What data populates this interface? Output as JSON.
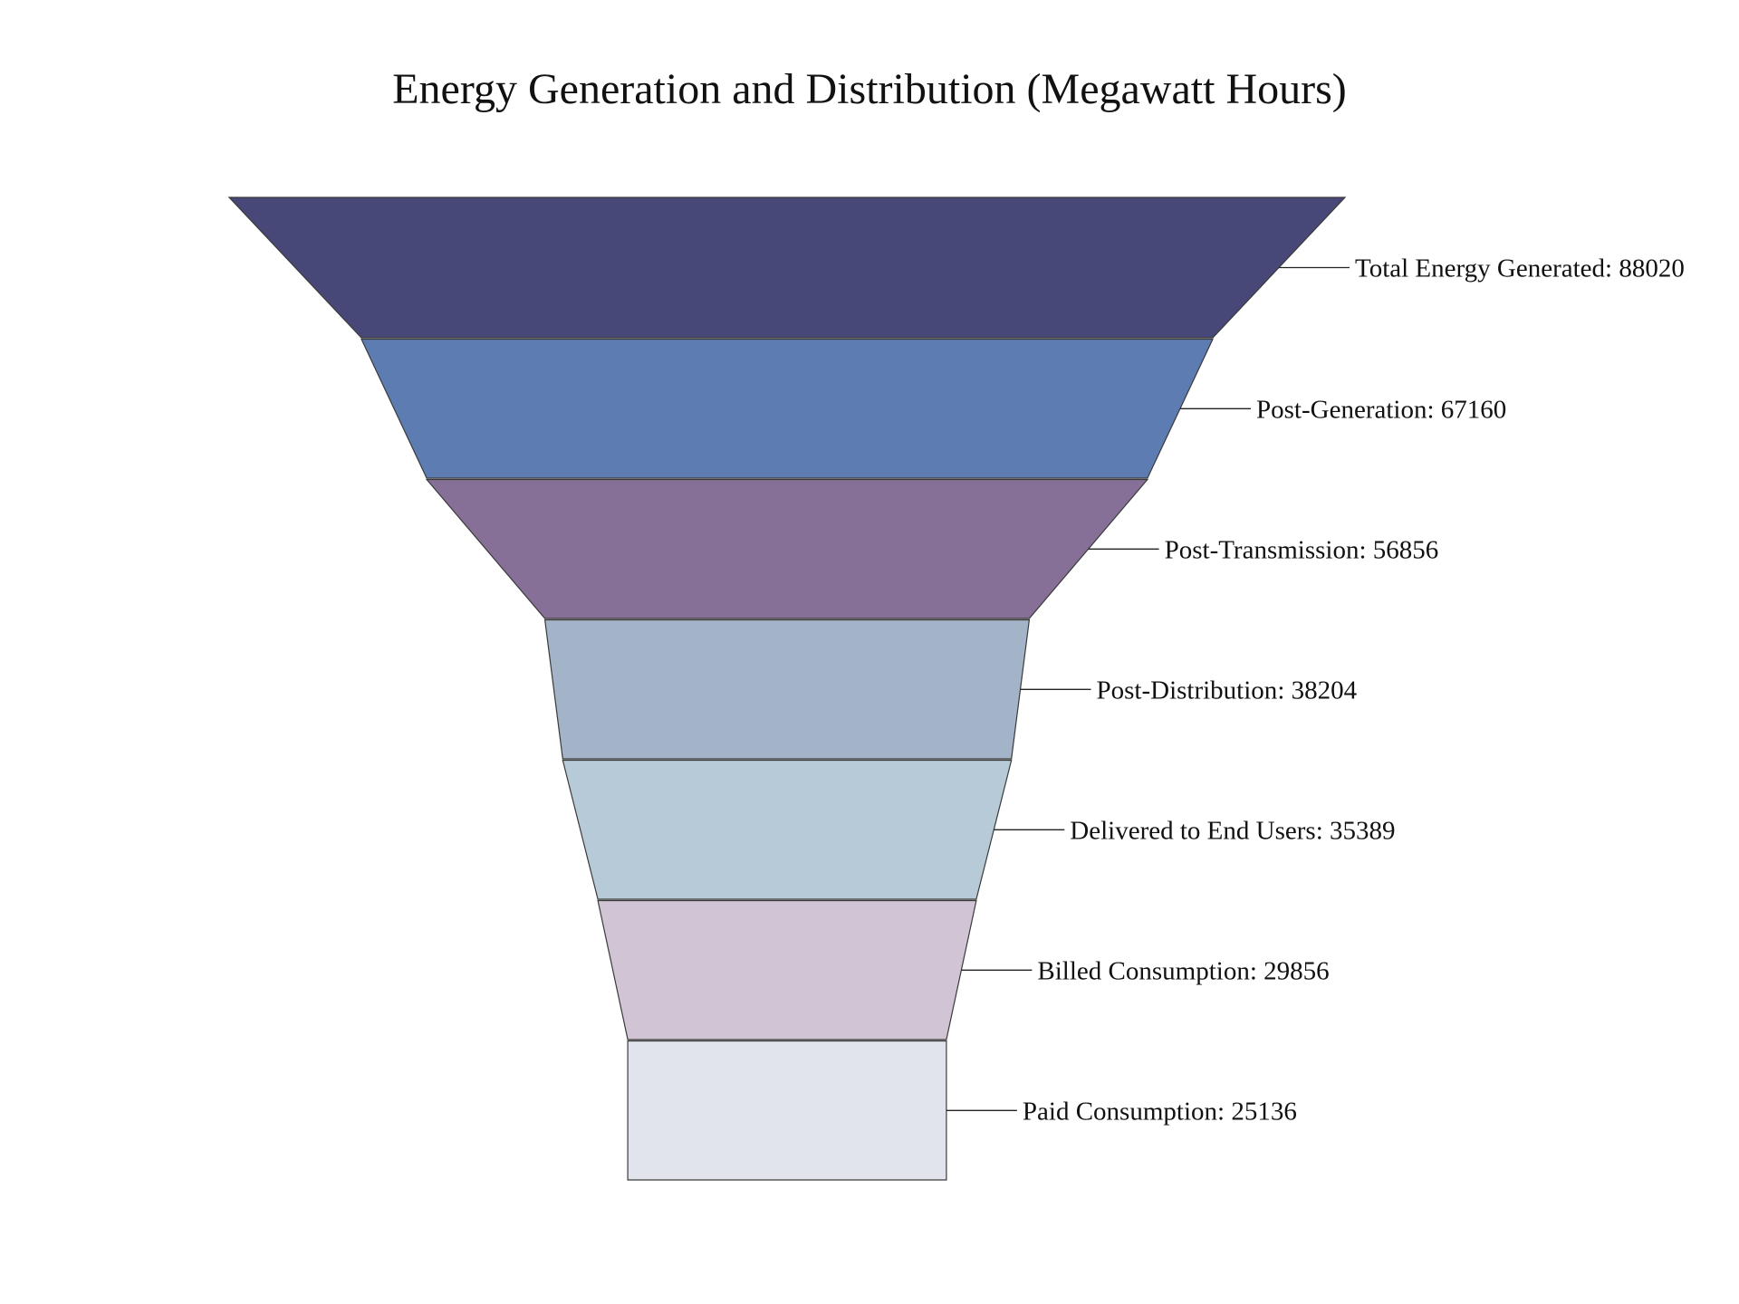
{
  "chart_data": {
    "type": "funnel",
    "title": "Energy Generation and Distribution (Megawatt Hours)",
    "label_separator": ": ",
    "stages": [
      {
        "label": "Total Energy Generated",
        "value": 88020,
        "color": "#474877"
      },
      {
        "label": "Post-Generation",
        "value": 67160,
        "color": "#5d7cb2"
      },
      {
        "label": "Post-Transmission",
        "value": 56856,
        "color": "#867098"
      },
      {
        "label": "Post-Distribution",
        "value": 38204,
        "color": "#a3b3c8"
      },
      {
        "label": "Delivered to End Users",
        "value": 35389,
        "color": "#b7cad7"
      },
      {
        "label": "Billed Consumption",
        "value": 29856,
        "color": "#d1c4d5"
      },
      {
        "label": "Paid Consumption",
        "value": 25136,
        "color": "#e1e4ec"
      }
    ]
  }
}
